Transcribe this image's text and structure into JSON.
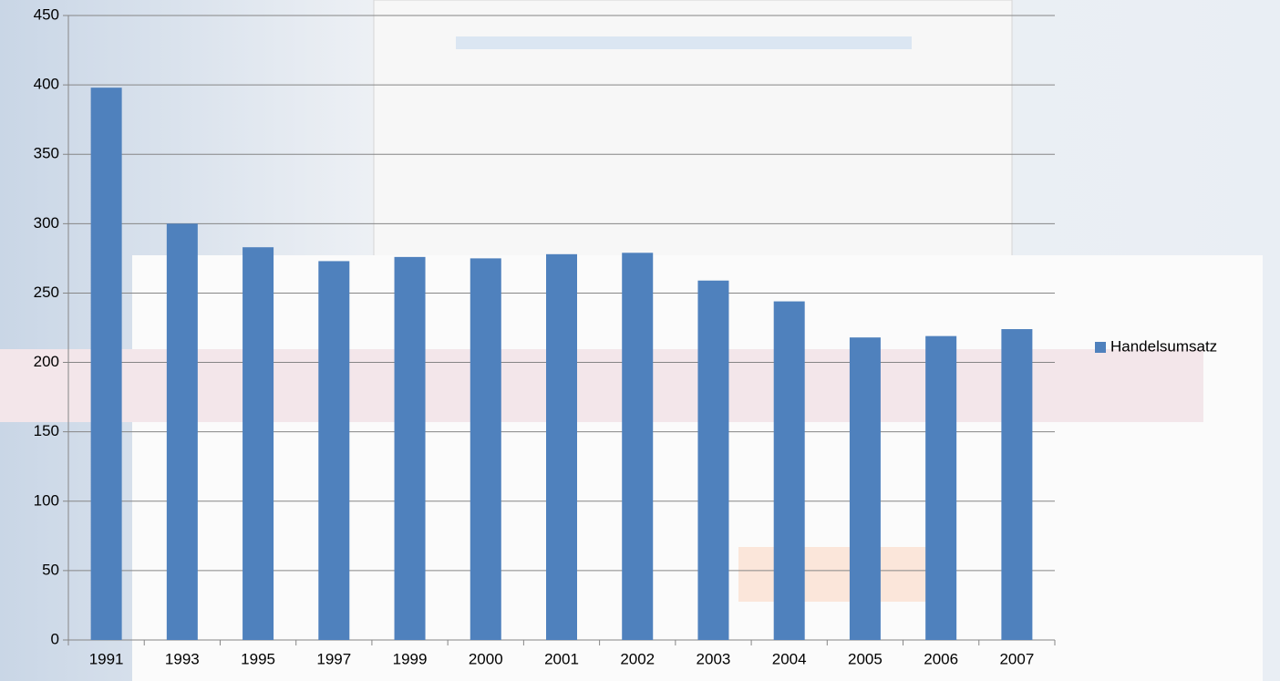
{
  "chart_data": {
    "type": "bar",
    "categories": [
      "1991",
      "1993",
      "1995",
      "1997",
      "1999",
      "2000",
      "2001",
      "2002",
      "2003",
      "2004",
      "2005",
      "2006",
      "2007"
    ],
    "series": [
      {
        "name": "Handelsumsatz",
        "color": "#4f81bd",
        "values": [
          398,
          300,
          283,
          273,
          276,
          275,
          278,
          279,
          259,
          244,
          218,
          219,
          224
        ]
      }
    ],
    "ylim": [
      0,
      450
    ],
    "yticks": [
      0,
      50,
      100,
      150,
      200,
      250,
      300,
      350,
      400,
      450
    ],
    "grid": true,
    "legend": "right"
  }
}
